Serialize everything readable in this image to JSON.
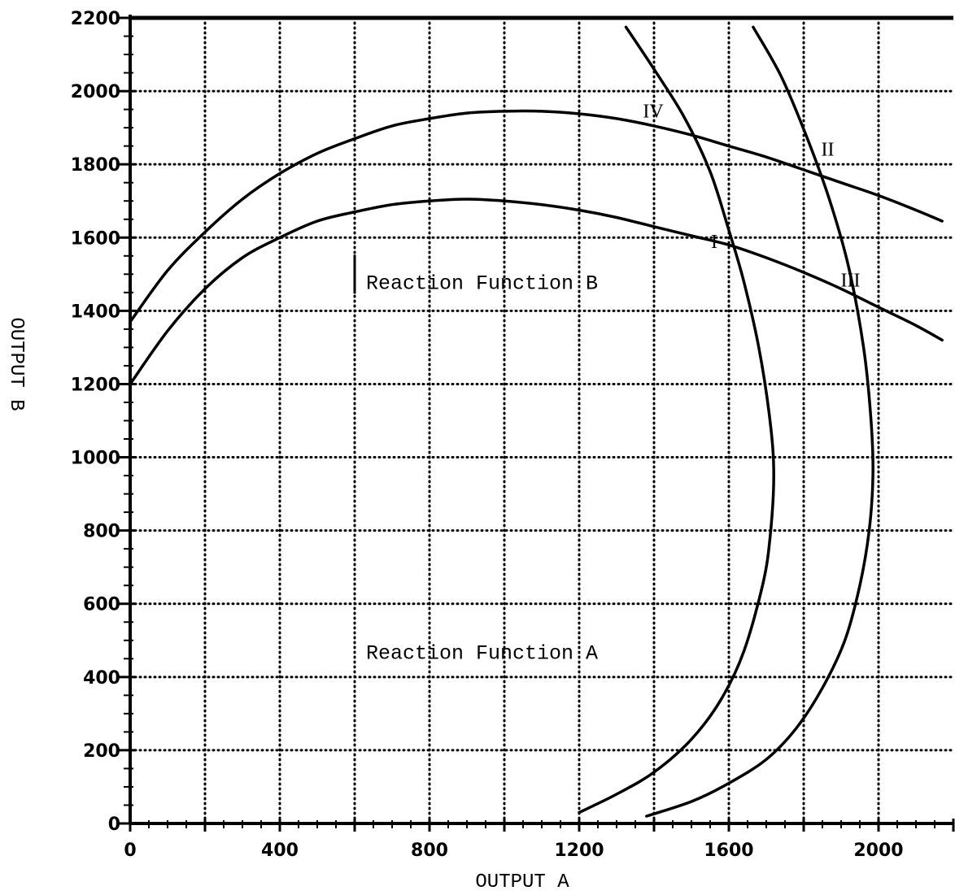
{
  "chart_data": {
    "type": "line",
    "xlabel": "OUTPUT A",
    "ylabel": "OUTPUT B",
    "xlim": [
      0,
      2200
    ],
    "ylim": [
      0,
      2200
    ],
    "x_ticks": [
      0,
      400,
      800,
      1200,
      1600,
      2000
    ],
    "y_ticks": [
      0,
      200,
      400,
      600,
      800,
      1000,
      1200,
      1400,
      1600,
      1800,
      2000,
      2200
    ],
    "grid": true,
    "grid_step": 200,
    "grid_style": "dotted",
    "annotations": [
      {
        "text": "Reaction Function B",
        "x": 600,
        "y": 1460
      },
      {
        "text": "Reaction Function A",
        "x": 600,
        "y": 450
      }
    ],
    "intersections": [
      {
        "label": "I",
        "x": 1600,
        "y": 1590
      },
      {
        "label": "II",
        "x": 1825,
        "y": 1815
      },
      {
        "label": "III",
        "x": 1925,
        "y": 1480
      },
      {
        "label": "IV",
        "x": 1490,
        "y": 1910
      }
    ],
    "series": [
      {
        "values": [
          [
            0,
            1370
          ],
          [
            100,
            1510
          ],
          [
            200,
            1615
          ],
          [
            300,
            1705
          ],
          [
            400,
            1775
          ],
          [
            500,
            1830
          ],
          [
            600,
            1870
          ],
          [
            700,
            1905
          ],
          [
            800,
            1925
          ],
          [
            900,
            1940
          ],
          [
            1000,
            1945
          ],
          [
            1100,
            1945
          ],
          [
            1200,
            1938
          ],
          [
            1300,
            1925
          ],
          [
            1400,
            1905
          ],
          [
            1500,
            1880
          ],
          [
            1600,
            1850
          ],
          [
            1700,
            1820
          ],
          [
            1800,
            1785
          ],
          [
            1900,
            1750
          ],
          [
            2000,
            1715
          ],
          [
            2100,
            1675
          ],
          [
            2170,
            1645
          ]
        ]
      },
      {
        "values": [
          [
            0,
            1200
          ],
          [
            100,
            1345
          ],
          [
            200,
            1460
          ],
          [
            300,
            1545
          ],
          [
            400,
            1600
          ],
          [
            500,
            1645
          ],
          [
            600,
            1670
          ],
          [
            700,
            1690
          ],
          [
            800,
            1700
          ],
          [
            900,
            1705
          ],
          [
            1000,
            1700
          ],
          [
            1100,
            1690
          ],
          [
            1200,
            1675
          ],
          [
            1300,
            1655
          ],
          [
            1400,
            1630
          ],
          [
            1500,
            1605
          ],
          [
            1600,
            1580
          ],
          [
            1700,
            1545
          ],
          [
            1800,
            1505
          ],
          [
            1900,
            1460
          ],
          [
            2000,
            1410
          ],
          [
            2100,
            1360
          ],
          [
            2170,
            1320
          ]
        ]
      },
      {
        "values": [
          [
            1325,
            2175
          ],
          [
            1400,
            2060
          ],
          [
            1480,
            1930
          ],
          [
            1550,
            1780
          ],
          [
            1600,
            1620
          ],
          [
            1640,
            1480
          ],
          [
            1680,
            1300
          ],
          [
            1710,
            1100
          ],
          [
            1720,
            950
          ],
          [
            1710,
            780
          ],
          [
            1690,
            650
          ],
          [
            1640,
            470
          ],
          [
            1580,
            340
          ],
          [
            1500,
            230
          ],
          [
            1400,
            140
          ],
          [
            1300,
            80
          ],
          [
            1200,
            30
          ]
        ]
      },
      {
        "values": [
          [
            1665,
            2175
          ],
          [
            1740,
            2040
          ],
          [
            1810,
            1870
          ],
          [
            1870,
            1700
          ],
          [
            1920,
            1520
          ],
          [
            1960,
            1300
          ],
          [
            1980,
            1100
          ],
          [
            1985,
            950
          ],
          [
            1975,
            800
          ],
          [
            1950,
            650
          ],
          [
            1910,
            500
          ],
          [
            1850,
            370
          ],
          [
            1780,
            260
          ],
          [
            1700,
            175
          ],
          [
            1600,
            110
          ],
          [
            1500,
            60
          ],
          [
            1380,
            20
          ]
        ]
      }
    ]
  }
}
